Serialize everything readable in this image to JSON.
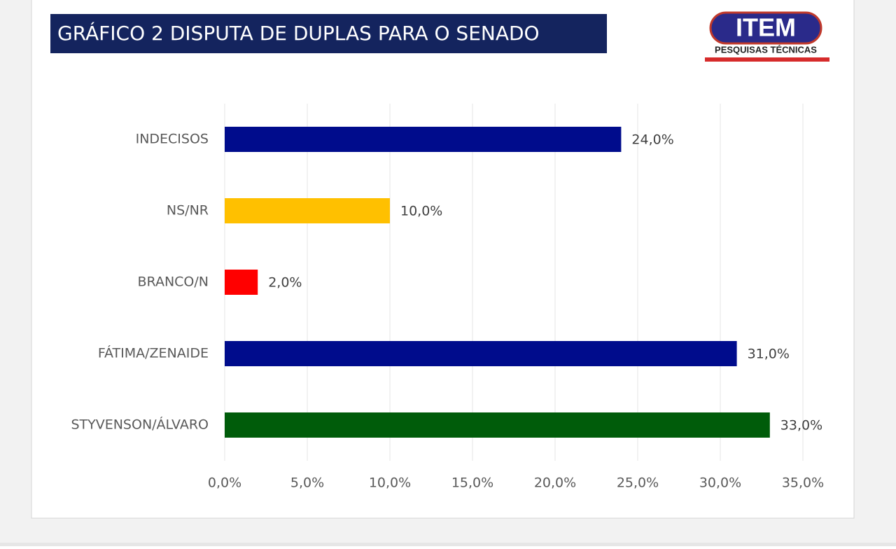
{
  "chart_data": {
    "type": "hbar",
    "title": "GRÁFICO 2 DISPUTA DE DUPLAS PARA O SENADO",
    "categories": [
      "INDECISOS",
      "NS/NR",
      "BRANCO/N",
      "FÁTIMA/ZENAIDE",
      "STYVENSON/ÁLVARO"
    ],
    "values": [
      24,
      10,
      2,
      31,
      33
    ],
    "value_labels": [
      "24,0%",
      "10,0%",
      "2,0%",
      "31,0%",
      "33,0%"
    ],
    "colors": [
      "#000c8c",
      "#ffc000",
      "#ff0000",
      "#000c8c",
      "#005c0a"
    ],
    "xlim": [
      0,
      35
    ],
    "xticks": [
      {
        "value": 0,
        "label": "0,0%"
      },
      {
        "value": 5,
        "label": "5,0%"
      },
      {
        "value": 10,
        "label": "10,0%"
      },
      {
        "value": 15,
        "label": "15,0%"
      },
      {
        "value": 20,
        "label": "20,0%"
      },
      {
        "value": 25,
        "label": "25,0%"
      },
      {
        "value": 30,
        "label": "30,0%"
      },
      {
        "value": 35,
        "label": "35,0%"
      }
    ],
    "grid": true
  },
  "logo": {
    "name": "ITEM",
    "tagline": "PESQUISAS TÉCNICAS"
  }
}
